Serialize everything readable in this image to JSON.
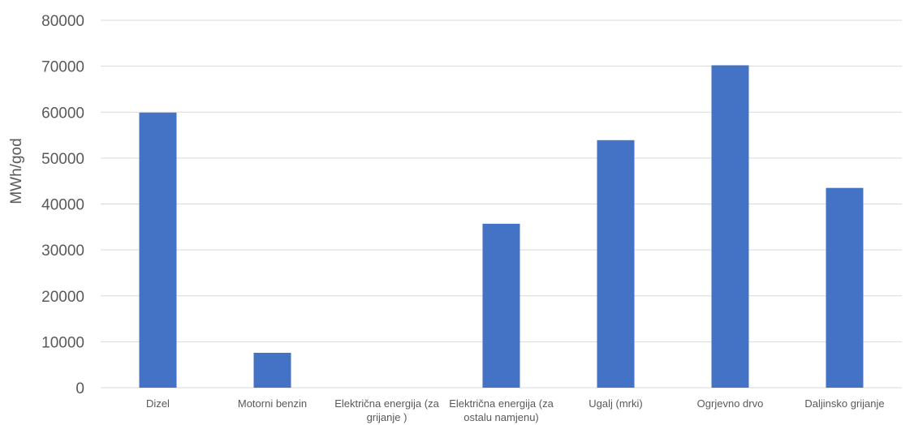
{
  "chart_data": {
    "type": "bar",
    "categories": [
      "Dizel",
      "Motorni benzin",
      "Električna energija (za grijanje )",
      "Električna energija (za ostalu namjenu)",
      "Ugalj (mrki)",
      "Ogrjevno drvo",
      "Daljinsko grijanje"
    ],
    "category_lines": [
      [
        "Dizel"
      ],
      [
        "Motorni benzin"
      ],
      [
        "Električna energija (za",
        "grijanje )"
      ],
      [
        "Električna energija (za",
        "ostalu namjenu)"
      ],
      [
        "Ugalj (mrki)"
      ],
      [
        "Ogrjevno drvo"
      ],
      [
        "Daljinsko grijanje"
      ]
    ],
    "values": [
      59900,
      7600,
      0,
      35700,
      53900,
      70200,
      43500
    ],
    "ylabel": "MWh/god",
    "ylim": [
      0,
      80000
    ],
    "yticks": [
      "0",
      "10000",
      "20000",
      "30000",
      "40000",
      "50000",
      "60000",
      "70000",
      "80000"
    ],
    "grid": true,
    "bar_color": "#4472c4"
  }
}
